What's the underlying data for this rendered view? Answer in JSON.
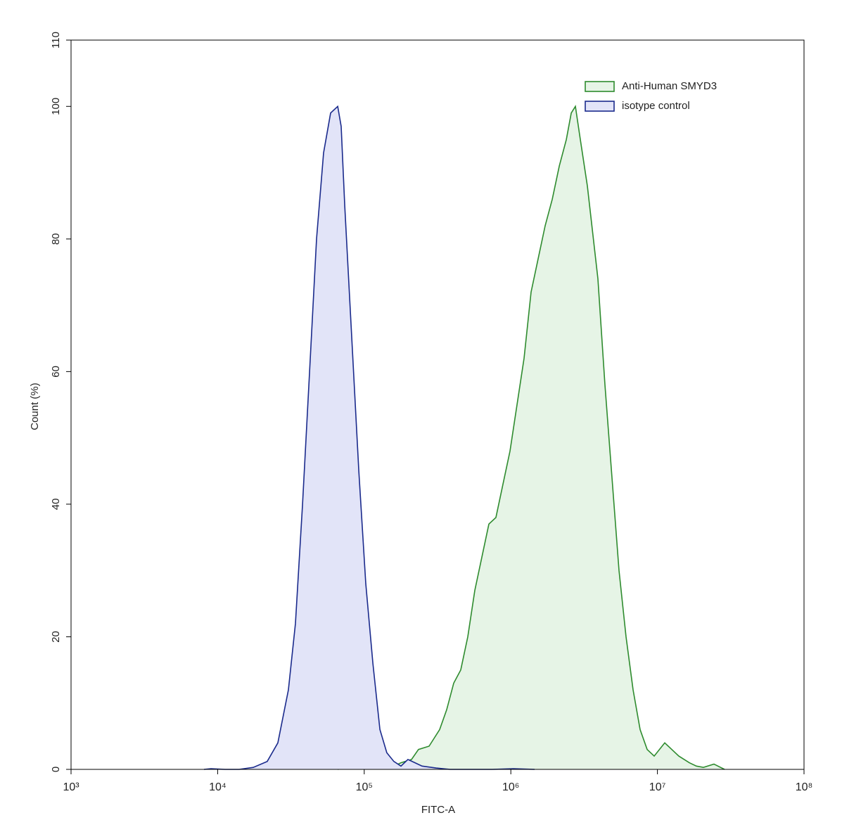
{
  "chart_data": {
    "type": "histogram_overlay",
    "x_label": "FITC-A",
    "y_label": "Count (%)",
    "xscale": "log",
    "xlim": [
      1000,
      100000000
    ],
    "xticks": [
      {
        "value": 1000,
        "label": "10³"
      },
      {
        "value": 10000,
        "label": "10⁴"
      },
      {
        "value": 100000,
        "label": "10⁵"
      },
      {
        "value": 1000000,
        "label": "10⁶"
      },
      {
        "value": 10000000,
        "label": "10⁷"
      },
      {
        "value": 100000000,
        "label": "10⁸"
      }
    ],
    "ylim": [
      0,
      110
    ],
    "yticks": [
      0,
      20,
      40,
      60,
      80,
      100,
      110
    ],
    "legend": "upper right",
    "series": [
      {
        "name": "Anti-Human SMYD3",
        "color": "#2e8b2e",
        "fill": "#e6f4e6",
        "x": [
          65900,
          82200,
          127900,
          159300,
          178000,
          210000,
          234500,
          276900,
          326800,
          365000,
          407600,
          455200,
          508500,
          567900,
          634300,
          708500,
          791300,
          883800,
          987000,
          1102000,
          1231000,
          1375000,
          1536000,
          1715000,
          1916000,
          2140000,
          2390000,
          2582000,
          2756000,
          2980000,
          3328000,
          3928000,
          4387000,
          4899000,
          5472000,
          6111000,
          6825000,
          7622000,
          8513000,
          9507000,
          11220000,
          12530000,
          13990000,
          16520000,
          18450000,
          20600000,
          24300000,
          28700000
        ],
        "values": [
          0,
          0.3,
          0.4,
          0.5,
          1,
          1.5,
          3,
          3.5,
          6,
          9,
          13,
          15,
          20,
          27,
          32,
          37,
          38,
          43,
          48,
          55,
          62,
          72,
          77,
          82,
          86,
          91,
          95,
          99,
          100,
          95,
          88,
          74,
          58,
          44,
          30,
          20,
          12,
          6,
          3,
          2,
          4,
          3,
          2,
          1,
          0.5,
          0.3,
          0.8,
          0
        ]
      },
      {
        "name": "isotype control",
        "color": "#1a2a8c",
        "fill": "#e2e4f8",
        "x": [
          8070,
          9010,
          11240,
          14020,
          17490,
          21800,
          25760,
          30400,
          33950,
          37930,
          42360,
          47300,
          52800,
          59000,
          65900,
          69600,
          73600,
          82200,
          91800,
          102500,
          114500,
          127900,
          142600,
          159300,
          178000,
          198700,
          222000,
          247900,
          309000,
          385500,
          748000,
          1042000,
          1452000
        ],
        "values": [
          0,
          0.1,
          0,
          0,
          0.3,
          1.2,
          4,
          12,
          22,
          40,
          60,
          80,
          93,
          99,
          100,
          97,
          85,
          65,
          45,
          28,
          16,
          6,
          2.5,
          1.2,
          0.5,
          1.5,
          1,
          0.5,
          0.2,
          0,
          0,
          0.1,
          0
        ]
      }
    ]
  }
}
